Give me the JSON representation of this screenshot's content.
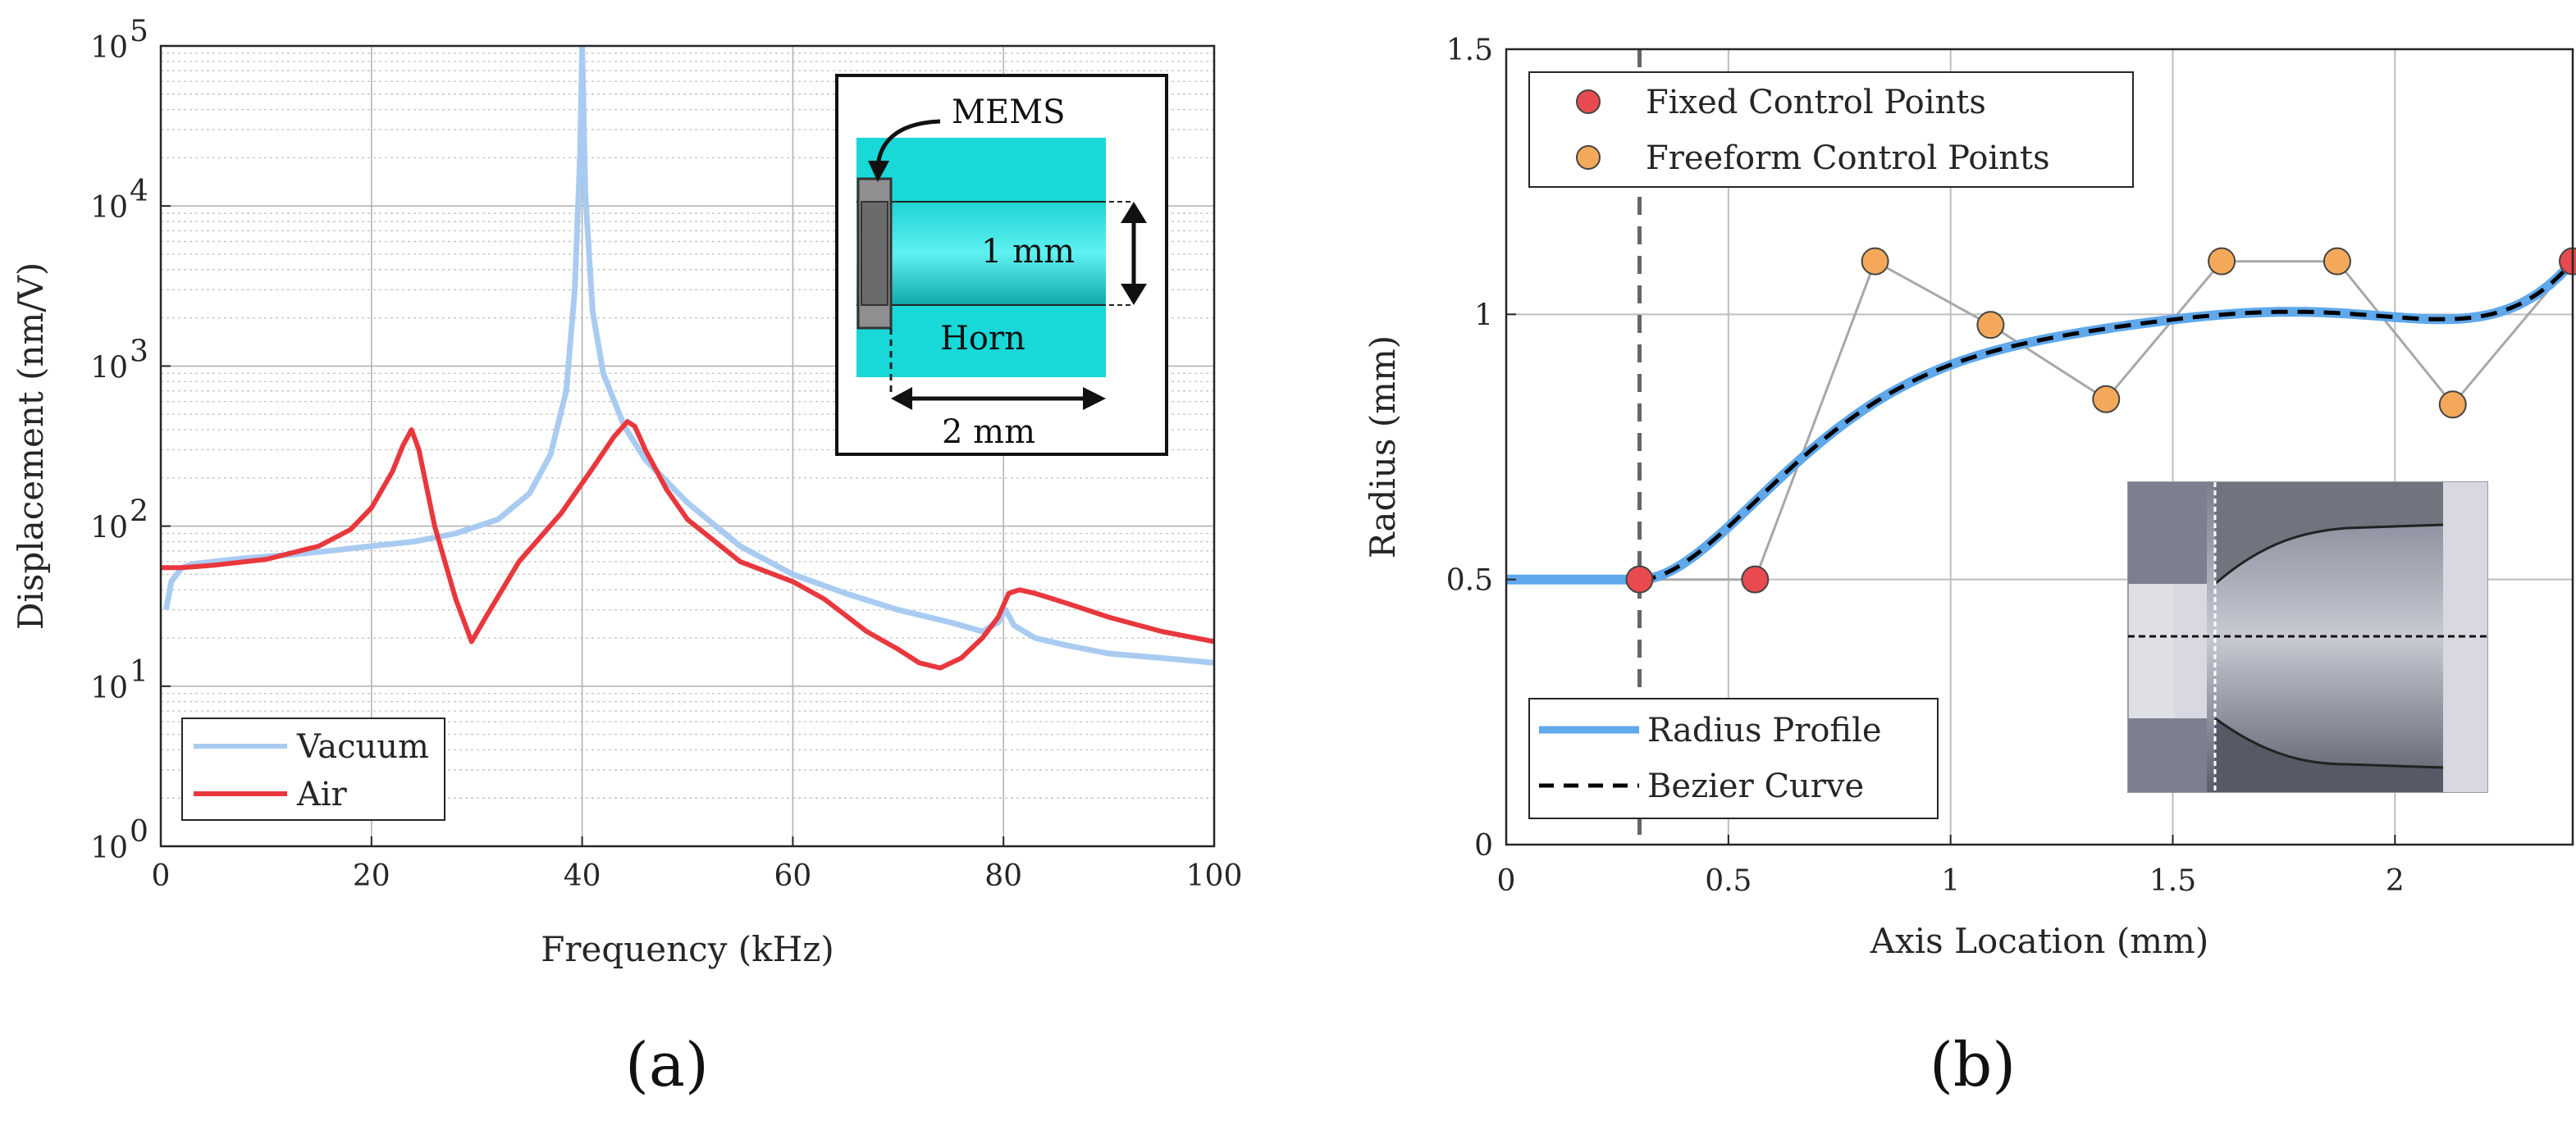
{
  "colors": {
    "vacuum": "#a9cbf2",
    "air": "#e8383d",
    "profile": "#5fa8ec",
    "bezier": "#000000",
    "fixed": "#e84a4f",
    "freeform": "#f4a95a",
    "grid": "#bdbdbd",
    "horn": "#18d6d6"
  },
  "chart_data": [
    {
      "id": "a",
      "type": "line",
      "panel_label": "(a)",
      "xlabel": "Frequency (kHz)",
      "ylabel": "Displacement (nm/V)",
      "xlim": [
        0,
        100
      ],
      "ylim": [
        1,
        100000
      ],
      "yscale": "log",
      "xticks": [
        0,
        20,
        40,
        60,
        80,
        100
      ],
      "yticks": [
        {
          "value": 1,
          "base": "10",
          "exp": "0"
        },
        {
          "value": 10,
          "base": "10",
          "exp": "1"
        },
        {
          "value": 100,
          "base": "10",
          "exp": "2"
        },
        {
          "value": 1000,
          "base": "10",
          "exp": "3"
        },
        {
          "value": 10000,
          "base": "10",
          "exp": "4"
        },
        {
          "value": 100000,
          "base": "10",
          "exp": "5"
        }
      ],
      "legend": {
        "placement": "bottom-left",
        "entries": [
          "Vacuum",
          "Air"
        ]
      },
      "series": [
        {
          "name": "Vacuum",
          "x": [
            0.5,
            1,
            2,
            3,
            5,
            8,
            12,
            16,
            20,
            24,
            28,
            32,
            35,
            37,
            38.5,
            39.3,
            39.8,
            40,
            40.3,
            41,
            42,
            44,
            46,
            50,
            55,
            60,
            65,
            70,
            75,
            78,
            79.5,
            80.2,
            81,
            83,
            86,
            90,
            95,
            100
          ],
          "y": [
            30,
            45,
            55,
            58,
            60,
            63,
            66,
            70,
            75,
            80,
            90,
            110,
            160,
            280,
            700,
            3000,
            20000,
            100000,
            12000,
            2200,
            900,
            420,
            260,
            140,
            75,
            50,
            38,
            30,
            25,
            22,
            25,
            30,
            24,
            20,
            18,
            16,
            15,
            14
          ]
        },
        {
          "name": "Air",
          "x": [
            0,
            2,
            5,
            10,
            15,
            18,
            20,
            22,
            23,
            23.8,
            24.5,
            26,
            28,
            29.5,
            31,
            34,
            38,
            41,
            43,
            44.3,
            45,
            46,
            48,
            50,
            55,
            60,
            63,
            67,
            70,
            72,
            74,
            76,
            78,
            79.5,
            80.5,
            81.5,
            83,
            86,
            90,
            95,
            100
          ],
          "y": [
            55,
            55,
            57,
            62,
            75,
            95,
            130,
            220,
            320,
            400,
            300,
            100,
            35,
            19,
            28,
            60,
            120,
            230,
            360,
            450,
            420,
            300,
            170,
            110,
            60,
            45,
            35,
            22,
            17,
            14,
            13,
            15,
            20,
            27,
            38,
            40,
            38,
            33,
            27,
            22,
            19
          ]
        }
      ],
      "inset": {
        "labels": [
          "MEMS",
          "1 mm",
          "Horn",
          "2 mm"
        ]
      }
    },
    {
      "id": "b",
      "type": "line",
      "panel_label": "(b)",
      "xlabel": "Axis Location (mm)",
      "ylabel": "Radius (mm)",
      "xlim": [
        0,
        2.4
      ],
      "ylim": [
        0,
        1.5
      ],
      "xticks": [
        0,
        0.5,
        1,
        1.5,
        2
      ],
      "xtick_labels": [
        "0",
        "0.5",
        "1",
        "1.5",
        "2"
      ],
      "yticks": [
        0,
        0.5,
        1,
        1.5
      ],
      "ytick_labels": [
        "0",
        "0.5",
        "1",
        "1.5"
      ],
      "vline_x": 0.3,
      "legend_top": {
        "placement": "top-left",
        "entries": [
          "Fixed Control Points",
          "Freeform Control Points"
        ]
      },
      "legend_bottom": {
        "placement": "bottom-left",
        "entries": [
          "Radius Profile",
          "Bezier Curve"
        ]
      },
      "fixed_points": [
        {
          "x": 0.3,
          "y": 0.5
        },
        {
          "x": 0.56,
          "y": 0.5
        },
        {
          "x": 2.4,
          "y": 1.1
        }
      ],
      "freeform_points": [
        {
          "x": 0.83,
          "y": 1.1
        },
        {
          "x": 1.09,
          "y": 0.98
        },
        {
          "x": 1.35,
          "y": 0.84
        },
        {
          "x": 1.61,
          "y": 1.1
        },
        {
          "x": 1.87,
          "y": 1.1
        },
        {
          "x": 2.13,
          "y": 0.83
        }
      ],
      "control_polygon": [
        [
          0.3,
          0.5
        ],
        [
          0.56,
          0.5
        ],
        [
          0.83,
          1.1
        ],
        [
          1.09,
          0.98
        ],
        [
          1.35,
          0.84
        ],
        [
          1.61,
          1.1
        ],
        [
          1.87,
          1.1
        ],
        [
          2.13,
          0.83
        ],
        [
          2.4,
          1.1
        ]
      ],
      "series": [
        {
          "name": "Radius Profile",
          "x": [
            0,
            0.3
          ],
          "y": [
            0.5,
            0.5
          ]
        }
      ]
    }
  ]
}
